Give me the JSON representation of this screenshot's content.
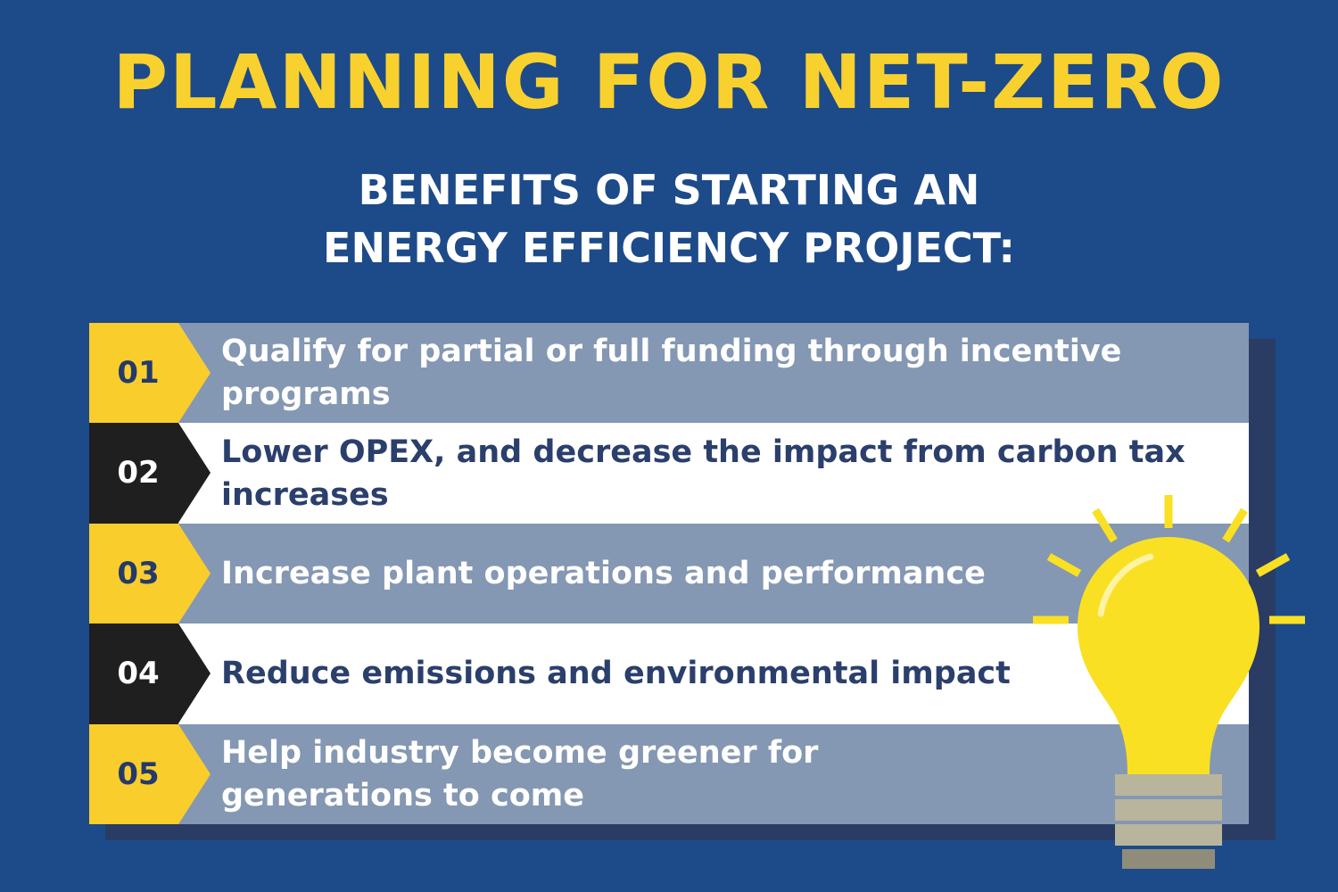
{
  "header": {
    "title": "PLANNING FOR NET-ZERO",
    "subtitle_line1": "BENEFITS OF STARTING AN",
    "subtitle_line2": "ENERGY EFFICIENCY PROJECT:"
  },
  "benefits": [
    {
      "number": "01",
      "text": "Qualify for partial or full funding  through incentive programs"
    },
    {
      "number": "02",
      "text": "Lower OPEX, and decrease the impact from carbon tax increases"
    },
    {
      "number": "03",
      "text": "Increase plant operations and performance"
    },
    {
      "number": "04",
      "text": "Reduce emissions and environmental impact"
    },
    {
      "number": "05",
      "text": "Help industry become greener for generations to come"
    }
  ],
  "colors": {
    "background": "#1d4a89",
    "title": "#f9d12e",
    "badge_yellow": "#f9cd2b",
    "badge_black": "#1f1f20",
    "row_alt": "#8497b3",
    "row_plain": "#ffffff",
    "bulb": "#f9e023"
  },
  "icons": {
    "illustration": "lightbulb-icon"
  }
}
